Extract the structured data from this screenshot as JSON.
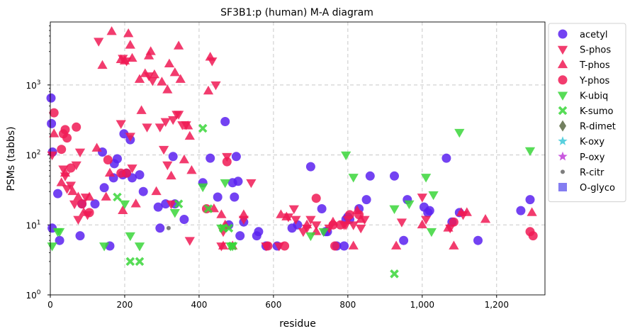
{
  "chart_data": {
    "type": "scatter",
    "title": "SF3B1:p (human) M-A diagram",
    "xlabel": "residue",
    "ylabel": "PSMs (tabbs)",
    "xlim": [
      0,
      1330
    ],
    "ylim_log10": [
      0,
      3.9
    ],
    "y_scale": "log",
    "grid": true,
    "legend_position": "right",
    "x_ticks": [
      {
        "v": 0,
        "label": "0"
      },
      {
        "v": 200,
        "label": "200"
      },
      {
        "v": 400,
        "label": "400"
      },
      {
        "v": 600,
        "label": "600"
      },
      {
        "v": 800,
        "label": "800"
      },
      {
        "v": 1000,
        "label": "1,000"
      },
      {
        "v": 1200,
        "label": "1,200"
      }
    ],
    "y_ticks": [
      {
        "v": 1,
        "base": "10",
        "exp": "0"
      },
      {
        "v": 10,
        "base": "10",
        "exp": "1"
      },
      {
        "v": 100,
        "base": "10",
        "exp": "2"
      },
      {
        "v": 1000,
        "base": "10",
        "exp": "3"
      }
    ],
    "series": [
      {
        "name": "acetyl",
        "marker": "circle",
        "color": "#5b21f0",
        "points": [
          [
            2,
            650
          ],
          [
            3,
            280
          ],
          [
            5,
            9
          ],
          [
            6,
            110
          ],
          [
            20,
            28
          ],
          [
            25,
            6
          ],
          [
            80,
            7
          ],
          [
            85,
            20
          ],
          [
            120,
            20
          ],
          [
            140,
            110
          ],
          [
            145,
            34
          ],
          [
            160,
            5
          ],
          [
            170,
            47
          ],
          [
            172,
            75
          ],
          [
            180,
            88
          ],
          [
            195,
            52
          ],
          [
            198,
            200
          ],
          [
            205,
            55
          ],
          [
            215,
            165
          ],
          [
            220,
            47
          ],
          [
            240,
            52
          ],
          [
            250,
            30
          ],
          [
            290,
            18
          ],
          [
            295,
            9
          ],
          [
            310,
            20
          ],
          [
            330,
            95
          ],
          [
            335,
            20
          ],
          [
            360,
            12
          ],
          [
            410,
            40
          ],
          [
            430,
            90
          ],
          [
            450,
            25
          ],
          [
            470,
            300
          ],
          [
            480,
            10
          ],
          [
            490,
            40
          ],
          [
            495,
            25
          ],
          [
            500,
            95
          ],
          [
            505,
            42
          ],
          [
            510,
            7
          ],
          [
            520,
            11
          ],
          [
            555,
            7
          ],
          [
            560,
            8
          ],
          [
            580,
            5
          ],
          [
            610,
            5
          ],
          [
            650,
            9
          ],
          [
            665,
            10
          ],
          [
            700,
            68
          ],
          [
            730,
            17
          ],
          [
            740,
            8
          ],
          [
            745,
            8
          ],
          [
            770,
            5
          ],
          [
            790,
            5
          ],
          [
            795,
            12
          ],
          [
            800,
            13
          ],
          [
            805,
            12
          ],
          [
            830,
            17
          ],
          [
            850,
            23
          ],
          [
            860,
            50
          ],
          [
            925,
            50
          ],
          [
            950,
            6
          ],
          [
            960,
            23
          ],
          [
            1005,
            18
          ],
          [
            1015,
            15
          ],
          [
            1020,
            16
          ],
          [
            1065,
            90
          ],
          [
            1080,
            11
          ],
          [
            1100,
            15
          ],
          [
            1150,
            6
          ],
          [
            1265,
            16
          ],
          [
            1290,
            23
          ]
        ]
      },
      {
        "name": "S-phos",
        "marker": "triangle-down",
        "color": "#f01a55",
        "points": [
          [
            5,
            100
          ],
          [
            35,
            63
          ],
          [
            40,
            50
          ],
          [
            45,
            33
          ],
          [
            55,
            37
          ],
          [
            65,
            20
          ],
          [
            70,
            72
          ],
          [
            75,
            12
          ],
          [
            80,
            110
          ],
          [
            95,
            25
          ],
          [
            100,
            14
          ],
          [
            130,
            4200
          ],
          [
            190,
            280
          ],
          [
            195,
            2400
          ],
          [
            205,
            2200
          ],
          [
            215,
            185
          ],
          [
            220,
            65
          ],
          [
            260,
            250
          ],
          [
            265,
            1350
          ],
          [
            275,
            1150
          ],
          [
            295,
            250
          ],
          [
            305,
            120
          ],
          [
            310,
            300
          ],
          [
            315,
            72
          ],
          [
            325,
            20
          ],
          [
            330,
            320
          ],
          [
            340,
            380
          ],
          [
            345,
            380
          ],
          [
            355,
            270
          ],
          [
            365,
            270
          ],
          [
            375,
            6
          ],
          [
            435,
            2200
          ],
          [
            445,
            1000
          ],
          [
            460,
            5
          ],
          [
            465,
            8
          ],
          [
            475,
            95
          ],
          [
            520,
            12
          ],
          [
            540,
            40
          ],
          [
            580,
            5
          ],
          [
            615,
            5
          ],
          [
            640,
            13
          ],
          [
            655,
            17
          ],
          [
            660,
            12
          ],
          [
            680,
            8
          ],
          [
            690,
            9
          ],
          [
            700,
            12
          ],
          [
            715,
            10
          ],
          [
            750,
            9
          ],
          [
            790,
            10
          ],
          [
            795,
            10
          ],
          [
            800,
            12
          ],
          [
            815,
            10
          ],
          [
            835,
            9
          ],
          [
            845,
            12
          ],
          [
            945,
            11
          ],
          [
            1000,
            25
          ],
          [
            1010,
            12
          ],
          [
            1075,
            9
          ],
          [
            1110,
            14
          ]
        ]
      },
      {
        "name": "T-phos",
        "marker": "triangle-up",
        "color": "#f01a55",
        "points": [
          [
            10,
            200
          ],
          [
            30,
            40
          ],
          [
            40,
            55
          ],
          [
            60,
            30
          ],
          [
            75,
            25
          ],
          [
            90,
            15
          ],
          [
            105,
            25
          ],
          [
            125,
            125
          ],
          [
            140,
            1900
          ],
          [
            150,
            25
          ],
          [
            160,
            55
          ],
          [
            165,
            5800
          ],
          [
            190,
            2300
          ],
          [
            195,
            16
          ],
          [
            200,
            2200
          ],
          [
            210,
            5400
          ],
          [
            215,
            3700
          ],
          [
            220,
            2400
          ],
          [
            230,
            20
          ],
          [
            240,
            1200
          ],
          [
            245,
            430
          ],
          [
            255,
            1450
          ],
          [
            265,
            2600
          ],
          [
            270,
            3000
          ],
          [
            280,
            1400
          ],
          [
            285,
            30
          ],
          [
            300,
            1100
          ],
          [
            315,
            850
          ],
          [
            320,
            2000
          ],
          [
            325,
            50
          ],
          [
            335,
            1500
          ],
          [
            345,
            3600
          ],
          [
            350,
            1200
          ],
          [
            360,
            85
          ],
          [
            370,
            260
          ],
          [
            375,
            185
          ],
          [
            380,
            60
          ],
          [
            425,
            820
          ],
          [
            430,
            2500
          ],
          [
            440,
            17
          ],
          [
            460,
            14
          ],
          [
            465,
            5
          ],
          [
            470,
            10
          ],
          [
            490,
            5
          ],
          [
            520,
            14
          ],
          [
            620,
            14
          ],
          [
            635,
            13
          ],
          [
            690,
            10
          ],
          [
            715,
            8
          ],
          [
            760,
            11
          ],
          [
            815,
            5
          ],
          [
            825,
            16
          ],
          [
            835,
            12
          ],
          [
            930,
            5
          ],
          [
            1000,
            10
          ],
          [
            1070,
            9
          ],
          [
            1085,
            5
          ],
          [
            1105,
            15
          ],
          [
            1120,
            15
          ],
          [
            1170,
            12
          ],
          [
            1295,
            15
          ]
        ]
      },
      {
        "name": "Y-phos",
        "marker": "circle",
        "color": "#f01a55",
        "points": [
          [
            10,
            400
          ],
          [
            30,
            120
          ],
          [
            35,
            200
          ],
          [
            40,
            230
          ],
          [
            45,
            175
          ],
          [
            55,
            65
          ],
          [
            70,
            250
          ],
          [
            85,
            20
          ],
          [
            105,
            15
          ],
          [
            155,
            85
          ],
          [
            190,
            55
          ],
          [
            205,
            55
          ],
          [
            420,
            17
          ],
          [
            475,
            80
          ],
          [
            585,
            5
          ],
          [
            630,
            5
          ],
          [
            715,
            24
          ],
          [
            760,
            10
          ],
          [
            765,
            5
          ],
          [
            780,
            10
          ],
          [
            805,
            14
          ],
          [
            830,
            14
          ],
          [
            1085,
            11
          ],
          [
            1290,
            8
          ],
          [
            1298,
            7
          ]
        ]
      },
      {
        "name": "K-ubiq",
        "marker": "triangle-down",
        "color": "#3ad63a",
        "points": [
          [
            5,
            5
          ],
          [
            20,
            8
          ],
          [
            25,
            8
          ],
          [
            145,
            5
          ],
          [
            200,
            20
          ],
          [
            215,
            7
          ],
          [
            240,
            5
          ],
          [
            335,
            15
          ],
          [
            410,
            35
          ],
          [
            460,
            9
          ],
          [
            470,
            40
          ],
          [
            485,
            5
          ],
          [
            490,
            5
          ],
          [
            700,
            7
          ],
          [
            735,
            8
          ],
          [
            795,
            100
          ],
          [
            815,
            48
          ],
          [
            925,
            17
          ],
          [
            965,
            20
          ],
          [
            1010,
            48
          ],
          [
            1025,
            8
          ],
          [
            1030,
            27
          ],
          [
            1100,
            210
          ],
          [
            1290,
            115
          ]
        ]
      },
      {
        "name": "K-sumo",
        "marker": "x",
        "color": "#3ad63a",
        "points": [
          [
            180,
            25
          ],
          [
            215,
            3
          ],
          [
            240,
            3
          ],
          [
            345,
            20
          ],
          [
            410,
            240
          ],
          [
            425,
            17
          ],
          [
            465,
            9
          ],
          [
            480,
            9
          ],
          [
            490,
            5
          ],
          [
            925,
            2
          ]
        ]
      },
      {
        "name": "R-dimet",
        "marker": "diamond",
        "color": "#5a6a44",
        "points": []
      },
      {
        "name": "K-oxy",
        "marker": "star",
        "color": "#3cc8d8",
        "points": []
      },
      {
        "name": "P-oxy",
        "marker": "star",
        "color": "#c03cd8",
        "points": []
      },
      {
        "name": "R-citr",
        "marker": "dot",
        "color": "#666666",
        "points": [
          [
            318,
            9
          ]
        ]
      },
      {
        "name": "O-glyco",
        "marker": "square",
        "color": "#6f66ee",
        "points": []
      }
    ]
  }
}
